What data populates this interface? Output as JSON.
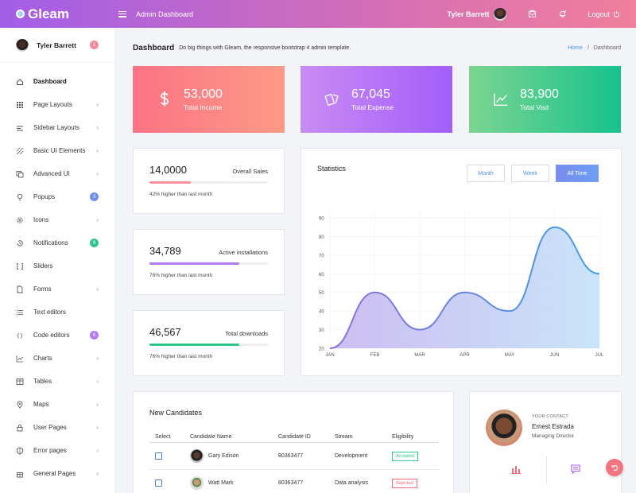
{
  "header": {
    "brand": "Gleam",
    "title": "Admin Dashboard",
    "user_name": "Tyler Barrett",
    "logout_label": "Logout",
    "icons": [
      "menu-icon",
      "mail-icon",
      "bell-icon",
      "power-icon"
    ]
  },
  "sidebar": {
    "profile_name": "Tyler Barrett",
    "profile_badge": "1",
    "items": [
      {
        "label": "Dashboard",
        "icon": "home-icon",
        "active": true
      },
      {
        "label": "Page Layouts",
        "icon": "grid-icon",
        "chevron": true
      },
      {
        "label": "Sidebar Layouts",
        "icon": "sidebar-icon",
        "chevron": true
      },
      {
        "label": "Basic UI Elements",
        "icon": "pattern-icon",
        "chevron": true
      },
      {
        "label": "Advanced UI",
        "icon": "copy-icon",
        "chevron": true
      },
      {
        "label": "Popups",
        "icon": "bulb-icon",
        "badge": "3",
        "badge_color": "#6f8df0"
      },
      {
        "label": "Icons",
        "icon": "gear-icon",
        "chevron": true
      },
      {
        "label": "Notifications",
        "icon": "history-icon",
        "badge": "9",
        "badge_color": "#2fc48a"
      },
      {
        "label": "Sliders",
        "icon": "brackets-icon"
      },
      {
        "label": "Forms",
        "icon": "file-icon",
        "chevron": true
      },
      {
        "label": "Text editors",
        "icon": "list-icon"
      },
      {
        "label": "Code editors",
        "icon": "code-icon",
        "badge": "6",
        "badge_color": "#b07cf0"
      },
      {
        "label": "Charts",
        "icon": "chart-icon",
        "chevron": true
      },
      {
        "label": "Tables",
        "icon": "table-icon",
        "chevron": true
      },
      {
        "label": "Maps",
        "icon": "pin-icon",
        "chevron": true
      },
      {
        "label": "User Pages",
        "icon": "lock-icon",
        "chevron": true
      },
      {
        "label": "Error pages",
        "icon": "shield-icon",
        "chevron": true
      },
      {
        "label": "General Pages",
        "icon": "gift-icon",
        "chevron": true
      }
    ]
  },
  "page": {
    "title": "Dashboard",
    "subtitle": "Do big things with Gleam, the responsive bootstrap 4 admin template.",
    "breadcrumb_home": "Home",
    "breadcrumb_sep": "/",
    "breadcrumb_current": "Dashboard"
  },
  "stats": [
    {
      "value": "53,000",
      "label": "Total Income",
      "icon": "dollar-icon",
      "gradient": [
        "#fc7385",
        "#fd9a86"
      ]
    },
    {
      "value": "67,045",
      "label": "Total Expense",
      "icon": "cards-icon",
      "gradient": [
        "#c98cf4",
        "#a25ef8"
      ]
    },
    {
      "value": "83,900",
      "label": "Total Visit",
      "icon": "trend-icon",
      "gradient": [
        "#7cd490",
        "#16c28e"
      ]
    }
  ],
  "mini_cards": [
    {
      "value": "14,0000",
      "label": "Overall Sales",
      "note": "42% higher than last month",
      "progress": 0.35,
      "color": "#f7909d"
    },
    {
      "value": "34,789",
      "label": "Active installations",
      "note": "76% higher than last month",
      "progress": 0.76,
      "color": "#b07cf0"
    },
    {
      "value": "46,567",
      "label": "Total downloads",
      "note": "76% higher than last month",
      "progress": 0.76,
      "color": "#2fc48a"
    }
  ],
  "statistics": {
    "title": "Statistics",
    "tabs": [
      {
        "label": "Month"
      },
      {
        "label": "Week"
      },
      {
        "label": "All Time",
        "active": true
      }
    ]
  },
  "chart_data": {
    "type": "area",
    "categories": [
      "JAN",
      "FEB",
      "MAR",
      "APR",
      "MAY",
      "JUN",
      "JUL"
    ],
    "values": [
      20,
      50,
      30,
      50,
      40,
      85,
      60
    ],
    "yticks": [
      20,
      30,
      40,
      50,
      60,
      70,
      80,
      90
    ],
    "ylim": [
      20,
      90
    ],
    "title": "Statistics",
    "grid": true
  },
  "candidates": {
    "title": "New Candidates",
    "columns": [
      "Select",
      "Candidate Name",
      "Candidate ID",
      "Stream",
      "Eligibility"
    ],
    "rows": [
      {
        "name": "Gary Edison",
        "id": "80363477",
        "stream": "Development",
        "eligibility": "Accepted",
        "status_color": "#2fc48a"
      },
      {
        "name": "Watt Mark",
        "id": "80363477",
        "stream": "Data analysis",
        "eligibility": "Rejected",
        "status_color": "#f06b7c"
      }
    ]
  },
  "contact": {
    "heading": "YOUR CONTACT",
    "name": "Ernest Estrada",
    "role": "Managing Director"
  }
}
